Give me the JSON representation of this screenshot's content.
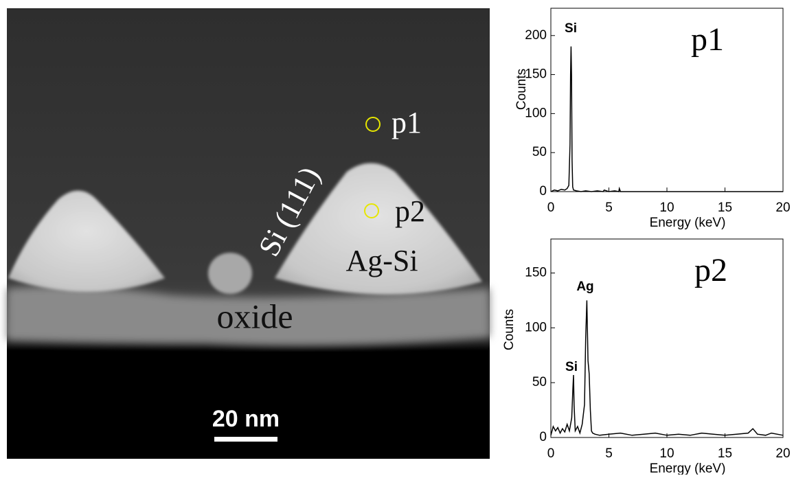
{
  "image": {
    "labels": {
      "p1": "p1",
      "p2": "p2",
      "facet": "Si (111)",
      "particle": "Ag-Si",
      "oxide": "oxide"
    },
    "scale_bar": "20 nm"
  },
  "chart_data": [
    {
      "type": "line",
      "title": "p1",
      "xlabel": "Energy (keV)",
      "ylabel": "Counts",
      "annotations": [
        "Si"
      ],
      "x": [
        0,
        0.3,
        0.6,
        0.9,
        1.2,
        1.4,
        1.55,
        1.65,
        1.7,
        1.74,
        1.78,
        1.83,
        1.88,
        1.95,
        2.2,
        2.6,
        3,
        3.5,
        4,
        4.5,
        4.6,
        5,
        5.5,
        5.85,
        5.9,
        6,
        7,
        10,
        13,
        16,
        20
      ],
      "series": [
        {
          "name": "p1",
          "color": "#000000",
          "values": [
            0,
            2,
            1,
            3,
            2,
            4,
            8,
            60,
            150,
            186,
            150,
            40,
            6,
            2,
            1,
            0,
            1,
            0,
            1,
            0,
            2,
            0,
            1,
            0,
            4,
            0,
            0,
            0,
            0,
            0,
            0
          ]
        }
      ],
      "xlim": [
        0,
        20
      ],
      "ylim": [
        0,
        235
      ],
      "xticks": [
        0,
        5,
        10,
        15,
        20
      ],
      "yticks": [
        0,
        50,
        100,
        150,
        200
      ]
    },
    {
      "type": "line",
      "title": "p2",
      "xlabel": "Energy (keV)",
      "ylabel": "Counts",
      "annotations": [
        "Si",
        "Ag"
      ],
      "x": [
        0,
        0.2,
        0.4,
        0.6,
        0.8,
        1.0,
        1.2,
        1.4,
        1.6,
        1.8,
        1.9,
        1.95,
        2.0,
        2.1,
        2.3,
        2.5,
        2.7,
        2.9,
        3.0,
        3.1,
        3.2,
        3.3,
        3.4,
        3.5,
        3.6,
        3.8,
        4.2,
        5,
        6,
        7,
        8,
        9,
        10,
        11,
        12,
        13,
        14,
        15,
        16,
        17,
        17.4,
        17.8,
        18.5,
        19,
        20
      ],
      "series": [
        {
          "name": "p2",
          "color": "#000000",
          "values": [
            2,
            10,
            6,
            9,
            4,
            8,
            5,
            12,
            6,
            18,
            45,
            57,
            30,
            6,
            10,
            4,
            12,
            30,
            90,
            125,
            70,
            58,
            25,
            6,
            4,
            3,
            2,
            3,
            4,
            2,
            3,
            4,
            2,
            3,
            2,
            4,
            3,
            2,
            3,
            4,
            8,
            3,
            2,
            4,
            2
          ]
        }
      ],
      "xlim": [
        0,
        20
      ],
      "ylim": [
        0,
        181
      ],
      "xticks": [
        0,
        5,
        10,
        15,
        20
      ],
      "yticks": [
        0,
        50,
        100,
        150
      ]
    }
  ]
}
